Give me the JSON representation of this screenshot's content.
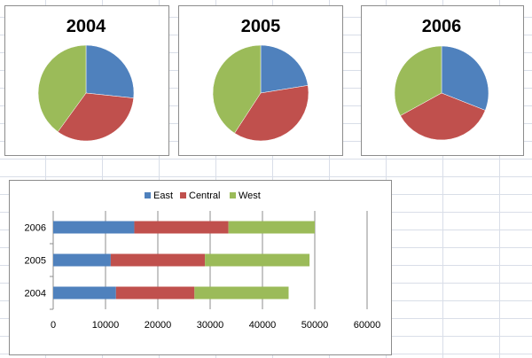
{
  "colors": {
    "East": "#4f81bd",
    "Central": "#c0504d",
    "West": "#9bbb59"
  },
  "chart_data": [
    {
      "type": "pie",
      "title": "2004",
      "categories": [
        "East",
        "Central",
        "West"
      ],
      "values": [
        12000,
        15000,
        18000
      ]
    },
    {
      "type": "pie",
      "title": "2005",
      "categories": [
        "East",
        "Central",
        "West"
      ],
      "values": [
        11000,
        18000,
        20000
      ]
    },
    {
      "type": "pie",
      "title": "2006",
      "categories": [
        "East",
        "Central",
        "West"
      ],
      "values": [
        15500,
        18000,
        16500
      ]
    },
    {
      "type": "bar",
      "orientation": "horizontal",
      "stacked": true,
      "categories": [
        "2004",
        "2005",
        "2006"
      ],
      "series": [
        {
          "name": "East",
          "values": [
            12000,
            11000,
            15500
          ]
        },
        {
          "name": "Central",
          "values": [
            15000,
            18000,
            18000
          ]
        },
        {
          "name": "West",
          "values": [
            18000,
            20000,
            16500
          ]
        }
      ],
      "xlim": [
        0,
        60000
      ],
      "xticks": [
        "0",
        "10000",
        "20000",
        "30000",
        "40000",
        "50000",
        "60000"
      ],
      "grid": true,
      "legend": "top"
    }
  ]
}
